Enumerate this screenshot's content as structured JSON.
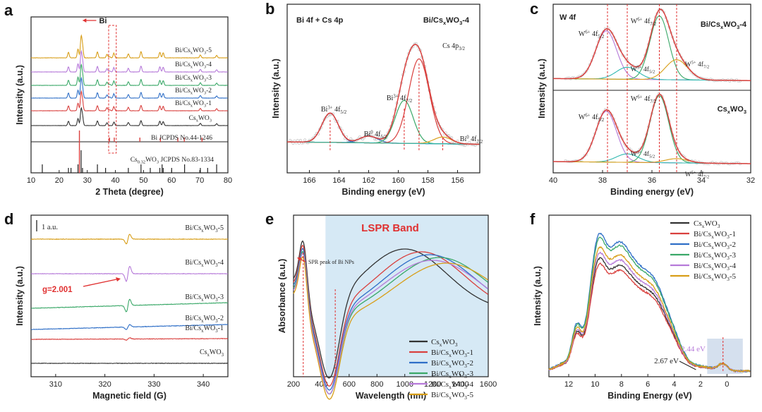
{
  "colors": {
    "black": "#333333",
    "red": "#d9403e",
    "blue": "#2f6fc7",
    "green": "#3aa868",
    "purple": "#b67ad9",
    "orange": "#d89e18",
    "cyan": "#2fb8b0",
    "dashed": "#e03030",
    "shade": "#d6e9f5",
    "pink_pts": "#e9a4a4"
  },
  "chart_data": [
    {
      "panel": "a",
      "type": "line",
      "xlabel": "2 Theta (degree)",
      "ylabel": "Intensity (a.u.)",
      "xlim": [
        10,
        80
      ],
      "xticks": [
        10,
        20,
        30,
        40,
        50,
        60,
        70,
        80
      ],
      "annotation": "Bi",
      "series": [
        {
          "name": "Bi/CsxWO3-5",
          "color": "orange"
        },
        {
          "name": "Bi/CsxWO3-4",
          "color": "purple"
        },
        {
          "name": "Bi/CsxWO3-3",
          "color": "green"
        },
        {
          "name": "Bi/CsxWO3-2",
          "color": "blue"
        },
        {
          "name": "Bi/CsxWO3-1",
          "color": "red"
        },
        {
          "name": "CsxWO3",
          "color": "black"
        }
      ],
      "peaks_2theta": [
        23.3,
        26.7,
        27.8,
        28.3,
        33.6,
        37.0,
        39.5,
        44.6,
        49.1,
        55.8,
        57.0,
        70.2,
        76.0
      ],
      "references": [
        {
          "name": "Bi JCPDS No.44-1246",
          "lines": [
            27.2,
            37.9,
            39.6,
            48.7,
            56.0,
            62.2,
            64.5,
            70.8
          ]
        },
        {
          "name": "Cs0.32WO3 JCPDS No.83-1334",
          "lines": [
            14.0,
            23.3,
            24.2,
            26.7,
            27.8,
            28.3,
            33.6,
            36.5,
            44.6,
            49.1,
            52.4,
            55.8,
            56.6,
            57.0,
            60.0,
            64.6,
            70.2,
            72.8,
            76.0
          ]
        }
      ]
    },
    {
      "panel": "b",
      "type": "line",
      "title": "Bi/CsxWO3-4",
      "subtitle": "Bi 4f + Cs 4p",
      "xlabel": "Binding energy (eV)",
      "ylabel": "Intensity (a.u.)",
      "xlim": [
        167.5,
        154.5
      ],
      "xticks": [
        166,
        164,
        162,
        160,
        158,
        156
      ],
      "peaks": [
        {
          "label": "Bi3+ 4f5/2",
          "x": 164.6
        },
        {
          "label": "Bi0 4f5/2",
          "x": 162.0
        },
        {
          "label": "Bi3+ 4f7/2",
          "x": 159.6
        },
        {
          "label": "Cs 4p3/2",
          "x": 158.6
        },
        {
          "label": "Bi0 4f7/2",
          "x": 157.0
        }
      ]
    },
    {
      "panel": "c",
      "type": "line",
      "subtitle": "W 4f",
      "xlabel": "Binding energy (eV)",
      "ylabel": "Intensity (a.u.)",
      "xlim": [
        40,
        32
      ],
      "xticks": [
        40,
        38,
        36,
        34,
        32
      ],
      "dashed_x": [
        37.8,
        37.0,
        35.7,
        35.0
      ],
      "subpanels": [
        {
          "title": "Bi/CsxWO3-4",
          "peaks": [
            {
              "label": "W6+ 4f5/2",
              "x": 37.8
            },
            {
              "label": "W6+ 4f7/2",
              "x": 35.7
            },
            {
              "label": "W5+ 4f5/2",
              "x": 37.0
            },
            {
              "label": "W5+ 4f7/2",
              "x": 35.0
            }
          ]
        },
        {
          "title": "CsxWO3",
          "peaks": [
            {
              "label": "W6+ 4f5/2",
              "x": 37.8
            },
            {
              "label": "W6+ 4f7/2",
              "x": 35.7
            },
            {
              "label": "W5+ 4f5/2",
              "x": 37.0
            },
            {
              "label": "W5+ 4f7/2",
              "x": 35.0
            }
          ]
        }
      ]
    },
    {
      "panel": "d",
      "type": "line",
      "xlabel": "Magnetic field (G)",
      "ylabel": "Intensity (a.u.)",
      "xlim": [
        305,
        345
      ],
      "xticks": [
        310,
        320,
        330,
        340
      ],
      "scalebar": "1 a.u.",
      "annotation": "g=2.001",
      "signal_center_G": 324.7,
      "series": [
        {
          "name": "Bi/CsxWO3-5",
          "color": "orange",
          "amplitude": 1.0
        },
        {
          "name": "Bi/CsxWO3-4",
          "color": "purple",
          "amplitude": 1.6
        },
        {
          "name": "Bi/CsxWO3-3",
          "color": "green",
          "amplitude": 1.3
        },
        {
          "name": "Bi/CsxWO3-2",
          "color": "blue",
          "amplitude": 0.5
        },
        {
          "name": "Bi/CsxWO3-1",
          "color": "red",
          "amplitude": 0.25
        },
        {
          "name": "CsxWO3",
          "color": "black",
          "amplitude": 0.0
        }
      ]
    },
    {
      "panel": "e",
      "type": "line",
      "xlabel": "Wavelength (nm)",
      "ylabel": "Absorbance (a.u.)",
      "xlim": [
        200,
        1600
      ],
      "xticks": [
        200,
        400,
        600,
        800,
        1000,
        1200,
        1400,
        1600
      ],
      "band_label": "LSPR Band",
      "band_range_nm": [
        430,
        1600
      ],
      "annotation": "SPR peak of Bi NPs",
      "dashed_x": [
        270,
        500
      ],
      "series": [
        {
          "name": "CsxWO3",
          "color": "black",
          "peak_nm": 1000
        },
        {
          "name": "Bi/CsxWO3-1",
          "color": "red",
          "peak_nm": 1120
        },
        {
          "name": "Bi/CsxWO3-2",
          "color": "blue",
          "peak_nm": 1180
        },
        {
          "name": "Bi/CsxWO3-3",
          "color": "green",
          "peak_nm": 1250
        },
        {
          "name": "Bi/CsxWO3-4",
          "color": "purple",
          "peak_nm": 1200
        },
        {
          "name": "Bi/CsxWO3-5",
          "color": "orange",
          "peak_nm": 1300
        }
      ]
    },
    {
      "panel": "f",
      "type": "line",
      "xlabel": "Binding Energy (eV)",
      "ylabel": "Intensity (a.u.)",
      "xlim": [
        13.5,
        -1.8
      ],
      "xticks": [
        12,
        10,
        8,
        6,
        4,
        2,
        0
      ],
      "annotations": [
        {
          "text": "2.67 eV",
          "x": 2.67
        },
        {
          "text": "2.44 eV",
          "x": 2.44
        }
      ],
      "series": [
        {
          "name": "CsxWO3",
          "color": "black",
          "scale": 0.82
        },
        {
          "name": "Bi/CsxWO3-1",
          "color": "red",
          "scale": 0.78
        },
        {
          "name": "Bi/CsxWO3-2",
          "color": "blue",
          "scale": 1.0
        },
        {
          "name": "Bi/CsxWO3-3",
          "color": "green",
          "scale": 0.97
        },
        {
          "name": "Bi/CsxWO3-4",
          "color": "purple",
          "scale": 0.86
        },
        {
          "name": "Bi/CsxWO3-5",
          "color": "orange",
          "scale": 0.9
        }
      ]
    }
  ]
}
